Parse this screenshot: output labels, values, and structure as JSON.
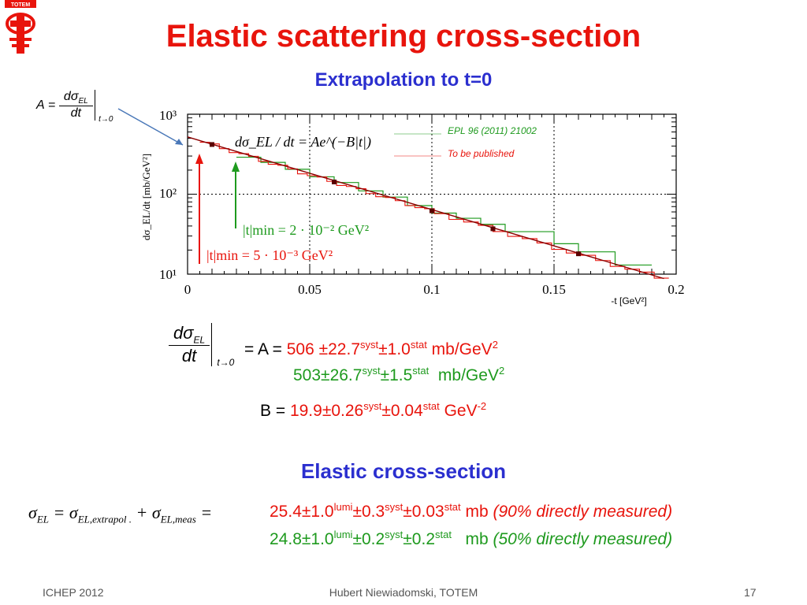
{
  "slide": {
    "title": "Elastic scattering cross-section",
    "subtitle": "Extrapolation to t=0",
    "section2_title": "Elastic cross-section",
    "logo_text": "TOTEM",
    "icons": {
      "logo": "totem-logo-icon"
    }
  },
  "formula_A": {
    "lhs": "A",
    "eq": "=",
    "num": "dσ",
    "num_sub": "EL",
    "den": "dt",
    "limit": "t→0"
  },
  "chart_data": {
    "type": "line",
    "ylabel": "dσ_EL/dt  [mb/GeV²]",
    "xlabel": "-t  [GeV²]",
    "x_ticks": [
      "0",
      "0.05",
      "0.1",
      "0.15",
      "0.2"
    ],
    "y_ticks": [
      "10¹",
      "10²",
      "10³"
    ],
    "xlim": [
      0,
      0.2
    ],
    "ylim_log10": [
      1,
      3
    ],
    "yscale": "log",
    "legend_position": "top-right",
    "fit_formula": "dσ_EL / dt = Ae^(−B|t|)",
    "series": [
      {
        "name": "EPL 96 (2011) 21002",
        "color": "#1e9a1e",
        "x": [
          0.02,
          0.05,
          0.1,
          0.15,
          0.19
        ],
        "y": [
          290,
          150,
          62,
          26,
          12
        ]
      },
      {
        "name": "To be published",
        "color": "#e8140c",
        "x": [
          0.005,
          0.05,
          0.1,
          0.15,
          0.19
        ],
        "y": [
          460,
          170,
          62,
          22,
          10
        ]
      }
    ],
    "annotations": [
      {
        "text": "|t|min = 2 · 10⁻² GeV²",
        "color": "#1e9a1e",
        "x": 0.02
      },
      {
        "text": "|t|min = 5 · 10⁻³ GeV²",
        "color": "#e8140c",
        "x": 0.005
      }
    ]
  },
  "results": {
    "dsdt": {
      "num": "dσ",
      "num_sub": "EL",
      "den": "dt",
      "limit": "t→0",
      "eq": "= A ="
    },
    "A_line1": {
      "value": "506 ±22.7",
      "syst_sup": "syst",
      "stat_part": "±1.0",
      "stat_sup": "stat",
      "unit": " mb/GeV",
      "unit_sup": "2"
    },
    "A_line2": {
      "value": "503±26.7",
      "syst_sup": "syst",
      "stat_part": "±1.5",
      "stat_sup": "stat",
      "unit": "  mb/GeV",
      "unit_sup": "2"
    },
    "B_line": {
      "label": "B = ",
      "value": "19.9±0.26",
      "syst_sup": "syst",
      "stat_part": "±0.04",
      "stat_sup": "stat",
      "unit": " GeV",
      "unit_sup": "-2"
    }
  },
  "sigma": {
    "lhs": "σ",
    "lhs_sub": "EL",
    "eq1": " = σ",
    "sub1": "EL,extrapol .",
    "plus": " + σ",
    "sub2": "EL,meas",
    "eq2": " =",
    "line1": {
      "value": "25.4±1.0",
      "lumi_sup": "lumi",
      "syst_part": "±0.3",
      "syst_sup": "syst",
      "stat_part": "±0.03",
      "stat_sup": "stat",
      "unit": " mb ",
      "note": "(90% directly measured)"
    },
    "line2": {
      "value": "24.8±1.0",
      "lumi_sup": "lumi",
      "syst_part": "±0.2",
      "syst_sup": "syst",
      "stat_part": "±0.2",
      "stat_sup": "stat",
      "unit": "   mb ",
      "note": "(50% directly measured)"
    }
  },
  "footer": {
    "left": "ICHEP 2012",
    "center": "Hubert Niewiadomski, TOTEM",
    "page": "17"
  }
}
